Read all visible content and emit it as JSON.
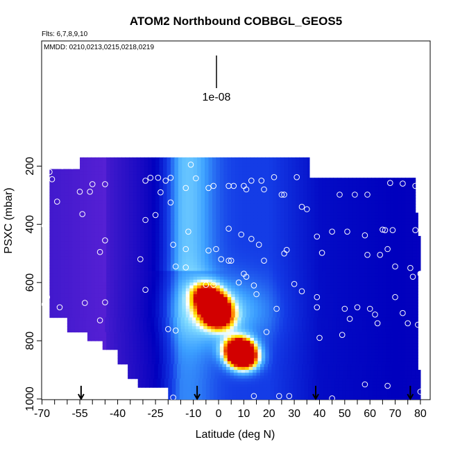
{
  "chart_data": {
    "type": "heatmap",
    "title": "ATOM2 Northbound COBBGL_GEOS5",
    "annotations": [
      "Flts: 6,7,8,9,10",
      "MMDD: 0210,0213,0215,0218,0219"
    ],
    "xlabel": "Latitude (deg N)",
    "ylabel": "PSXC (mbar)",
    "xlim": [
      -70,
      82
    ],
    "ylim": [
      1010,
      0
    ],
    "xticks": [
      -70,
      -55,
      -40,
      -25,
      -10,
      0,
      10,
      20,
      30,
      40,
      50,
      60,
      70,
      80
    ],
    "yticks": [
      200,
      400,
      600,
      800,
      1000
    ],
    "scale_label": "1e-08",
    "arrows_lat": [
      -54.5,
      -8.5,
      38.5,
      76
    ],
    "hotspots": [
      {
        "lat": -2,
        "p": 680,
        "level": 1.0
      },
      {
        "lat": 8,
        "p": 830,
        "level": 1.0
      },
      {
        "lat": 10,
        "p": 860,
        "level": 0.85
      },
      {
        "lat": 0,
        "p": 720,
        "level": 0.75
      },
      {
        "lat": -5,
        "p": 640,
        "level": 0.55
      }
    ],
    "observations": [
      [
        -62,
        200
      ],
      [
        -58,
        200
      ],
      [
        -67,
        220
      ],
      [
        -66,
        245
      ],
      [
        -50,
        262
      ],
      [
        -45,
        262
      ],
      [
        -51,
        288
      ],
      [
        -55,
        288
      ],
      [
        -64,
        322
      ],
      [
        -54,
        365
      ],
      [
        -69,
        405
      ],
      [
        -45,
        455
      ],
      [
        -47,
        495
      ],
      [
        -68,
        650
      ],
      [
        -63,
        685
      ],
      [
        -69,
        675
      ],
      [
        -53,
        670
      ],
      [
        -45,
        668
      ],
      [
        -47,
        730
      ],
      [
        -29,
        250
      ],
      [
        -21,
        250
      ],
      [
        -19,
        240
      ],
      [
        -9,
        242
      ],
      [
        -11,
        195
      ],
      [
        -27,
        240
      ],
      [
        -24,
        240
      ],
      [
        -23,
        290
      ],
      [
        -19,
        325
      ],
      [
        -4,
        275
      ],
      [
        -13,
        275
      ],
      [
        -2,
        268
      ],
      [
        4,
        268
      ],
      [
        6,
        268
      ],
      [
        10,
        268
      ],
      [
        11,
        280
      ],
      [
        13,
        250
      ],
      [
        17,
        250
      ],
      [
        18,
        280
      ],
      [
        25,
        298
      ],
      [
        22,
        238
      ],
      [
        31,
        238
      ],
      [
        26,
        298
      ],
      [
        33,
        340
      ],
      [
        35,
        348
      ],
      [
        48,
        298
      ],
      [
        54,
        298
      ],
      [
        59,
        298
      ],
      [
        68,
        258
      ],
      [
        73,
        260
      ],
      [
        78,
        268
      ],
      [
        -29,
        385
      ],
      [
        -25,
        368
      ],
      [
        -18,
        470
      ],
      [
        -12,
        425
      ],
      [
        -13,
        485
      ],
      [
        4,
        415
      ],
      [
        9,
        435
      ],
      [
        -4,
        490
      ],
      [
        -1,
        485
      ],
      [
        1,
        520
      ],
      [
        5,
        525
      ],
      [
        13,
        450
      ],
      [
        16,
        470
      ],
      [
        27,
        488
      ],
      [
        18,
        525
      ],
      [
        26,
        500
      ],
      [
        -29,
        625
      ],
      [
        -31,
        520
      ],
      [
        -17,
        545
      ],
      [
        -13,
        548
      ],
      [
        4,
        525
      ],
      [
        8,
        600
      ],
      [
        10,
        570
      ],
      [
        11,
        580
      ],
      [
        14,
        610
      ],
      [
        39,
        442
      ],
      [
        45,
        425
      ],
      [
        51,
        425
      ],
      [
        58,
        438
      ],
      [
        66,
        420
      ],
      [
        65,
        418
      ],
      [
        69,
        420
      ],
      [
        78,
        420
      ],
      [
        41,
        498
      ],
      [
        59,
        505
      ],
      [
        64,
        505
      ],
      [
        67,
        485
      ],
      [
        70,
        545
      ],
      [
        76,
        550
      ],
      [
        77,
        580
      ],
      [
        80,
        570
      ],
      [
        -5,
        608
      ],
      [
        -2,
        608
      ],
      [
        15,
        640
      ],
      [
        23,
        690
      ],
      [
        30,
        605
      ],
      [
        33,
        630
      ],
      [
        39,
        650
      ],
      [
        39,
        685
      ],
      [
        50,
        690
      ],
      [
        55,
        685
      ],
      [
        60,
        690
      ],
      [
        62,
        710
      ],
      [
        63,
        740
      ],
      [
        70,
        650
      ],
      [
        73,
        705
      ],
      [
        75,
        740
      ],
      [
        79,
        745
      ],
      [
        52,
        725
      ],
      [
        49,
        780
      ],
      [
        40,
        790
      ],
      [
        -17,
        765
      ],
      [
        -20,
        760
      ],
      [
        19,
        770
      ],
      [
        -18,
        995
      ],
      [
        14,
        990
      ],
      [
        24,
        990
      ],
      [
        28,
        990
      ],
      [
        45,
        998
      ],
      [
        58,
        950
      ],
      [
        67,
        955
      ],
      [
        80,
        975
      ]
    ]
  }
}
